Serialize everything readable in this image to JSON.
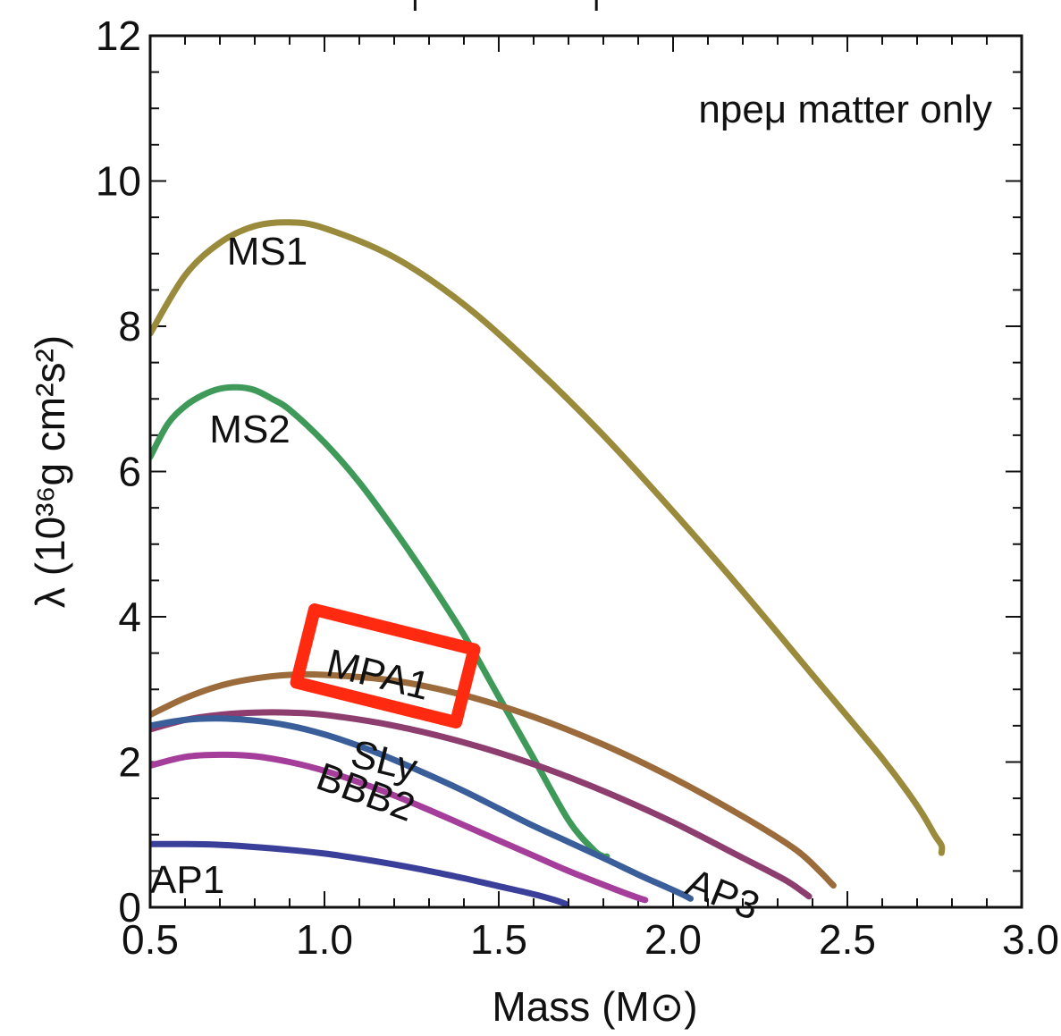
{
  "chart_data": {
    "type": "line",
    "title": "",
    "xlabel": "Mass (M⊙)",
    "ylabel": "λ (10³⁶g cm²s²)",
    "xlim": [
      0.5,
      3.0
    ],
    "ylim": [
      0,
      12
    ],
    "xticks": [
      "0.5",
      "1.0",
      "1.5",
      "2.0",
      "2.5",
      "3.0"
    ],
    "yticks": [
      "0",
      "2",
      "4",
      "6",
      "8",
      "10",
      "12"
    ],
    "grid": false,
    "annotation": "npeμ matter only",
    "highlighted_series": "MPA1",
    "series": [
      {
        "name": "MS1",
        "color": "#9a8a3c",
        "x": [
          0.5,
          0.6,
          0.7,
          0.8,
          0.9,
          1.0,
          1.2,
          1.4,
          1.6,
          1.8,
          2.0,
          2.2,
          2.4,
          2.6,
          2.7,
          2.75,
          2.77,
          2.77
        ],
        "y": [
          7.9,
          8.7,
          9.15,
          9.38,
          9.43,
          9.35,
          8.95,
          8.3,
          7.45,
          6.5,
          5.45,
          4.35,
          3.2,
          2.05,
          1.4,
          1.0,
          0.85,
          0.75
        ]
      },
      {
        "name": "MS2",
        "color": "#3f9a5a",
        "x": [
          0.5,
          0.55,
          0.6,
          0.65,
          0.7,
          0.75,
          0.8,
          0.85,
          0.9,
          1.0,
          1.1,
          1.2,
          1.3,
          1.4,
          1.5,
          1.6,
          1.7,
          1.77,
          1.8,
          1.81
        ],
        "y": [
          6.2,
          6.65,
          6.9,
          7.05,
          7.14,
          7.16,
          7.12,
          7.0,
          6.85,
          6.4,
          5.85,
          5.2,
          4.5,
          3.75,
          2.9,
          2.05,
          1.2,
          0.8,
          0.7,
          0.7
        ]
      },
      {
        "name": "MPA1",
        "color": "#9b6b3c",
        "x": [
          0.5,
          0.6,
          0.7,
          0.8,
          0.9,
          1.0,
          1.2,
          1.4,
          1.6,
          1.8,
          2.0,
          2.2,
          2.35,
          2.42,
          2.45,
          2.46
        ],
        "y": [
          2.65,
          2.88,
          3.05,
          3.15,
          3.2,
          3.2,
          3.12,
          2.92,
          2.62,
          2.24,
          1.78,
          1.25,
          0.8,
          0.5,
          0.35,
          0.3
        ]
      },
      {
        "name": "AP3",
        "color": "#8e3d6f",
        "x": [
          0.5,
          0.6,
          0.7,
          0.8,
          0.9,
          1.0,
          1.2,
          1.4,
          1.6,
          1.8,
          2.0,
          2.2,
          2.32,
          2.37,
          2.39
        ],
        "y": [
          2.45,
          2.58,
          2.65,
          2.68,
          2.68,
          2.65,
          2.5,
          2.27,
          1.97,
          1.6,
          1.17,
          0.68,
          0.38,
          0.22,
          0.15
        ]
      },
      {
        "name": "SLy",
        "color": "#3a5e9a",
        "x": [
          0.5,
          0.6,
          0.7,
          0.8,
          0.9,
          1.0,
          1.1,
          1.2,
          1.3,
          1.4,
          1.5,
          1.6,
          1.7,
          1.8,
          1.9,
          1.98,
          2.03,
          2.05
        ],
        "y": [
          2.5,
          2.58,
          2.6,
          2.57,
          2.5,
          2.38,
          2.22,
          2.03,
          1.82,
          1.6,
          1.36,
          1.12,
          0.9,
          0.68,
          0.45,
          0.28,
          0.17,
          0.12
        ]
      },
      {
        "name": "BBB2",
        "color": "#a43e9a",
        "x": [
          0.5,
          0.6,
          0.7,
          0.8,
          0.9,
          1.0,
          1.1,
          1.2,
          1.3,
          1.4,
          1.5,
          1.6,
          1.7,
          1.8,
          1.86,
          1.9,
          1.92
        ],
        "y": [
          1.95,
          2.07,
          2.1,
          2.08,
          2.0,
          1.88,
          1.72,
          1.54,
          1.34,
          1.13,
          0.92,
          0.71,
          0.5,
          0.31,
          0.2,
          0.13,
          0.1
        ]
      },
      {
        "name": "AP1",
        "color": "#3a3f9a",
        "x": [
          0.5,
          0.6,
          0.7,
          0.8,
          0.9,
          1.0,
          1.1,
          1.2,
          1.3,
          1.4,
          1.5,
          1.6,
          1.66,
          1.69
        ],
        "y": [
          0.87,
          0.87,
          0.86,
          0.83,
          0.79,
          0.74,
          0.67,
          0.59,
          0.5,
          0.4,
          0.29,
          0.18,
          0.1,
          0.05
        ]
      }
    ],
    "series_labels": [
      {
        "text": "MS1",
        "x": 0.72,
        "y": 8.85,
        "rotate": 0
      },
      {
        "text": "MS2",
        "x": 0.67,
        "y": 6.4,
        "rotate": 0
      },
      {
        "text": "MPA1",
        "x": 1.0,
        "y": 3.2,
        "rotate": 14
      },
      {
        "text": "SLy",
        "x": 1.07,
        "y": 1.95,
        "rotate": 14
      },
      {
        "text": "BBB2",
        "x": 0.97,
        "y": 1.65,
        "rotate": 20
      },
      {
        "text": "AP1",
        "x": 0.5,
        "y": 0.2,
        "rotate": 0
      },
      {
        "text": "AP3",
        "x": 2.03,
        "y": 0.2,
        "rotate": 22
      }
    ]
  }
}
